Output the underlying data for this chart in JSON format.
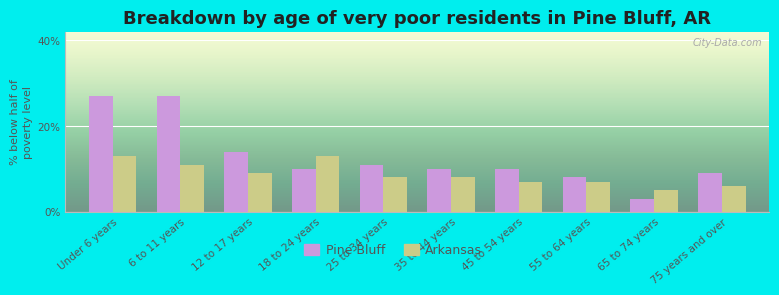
{
  "title": "Breakdown by age of very poor residents in Pine Bluff, AR",
  "ylabel": "% below half of\npoverty level",
  "categories": [
    "Under 6 years",
    "6 to 11 years",
    "12 to 17 years",
    "18 to 24 years",
    "25 to 34 years",
    "35 to 44 years",
    "45 to 54 years",
    "55 to 64 years",
    "65 to 74 years",
    "75 years and over"
  ],
  "pine_bluff": [
    27,
    27,
    14,
    10,
    11,
    10,
    10,
    8,
    3,
    9
  ],
  "arkansas": [
    13,
    11,
    9,
    13,
    8,
    8,
    7,
    7,
    5,
    6
  ],
  "pine_bluff_color": "#cc99dd",
  "arkansas_color": "#cccc88",
  "bar_width": 0.35,
  "ylim": [
    0,
    42
  ],
  "yticks": [
    0,
    20,
    40
  ],
  "ytick_labels": [
    "0%",
    "20%",
    "40%"
  ],
  "background_color": "#00eeee",
  "title_fontsize": 13,
  "axis_fontsize": 8,
  "tick_fontsize": 7.5,
  "legend_labels": [
    "Pine Bluff",
    "Arkansas"
  ],
  "watermark": "City-Data.com"
}
